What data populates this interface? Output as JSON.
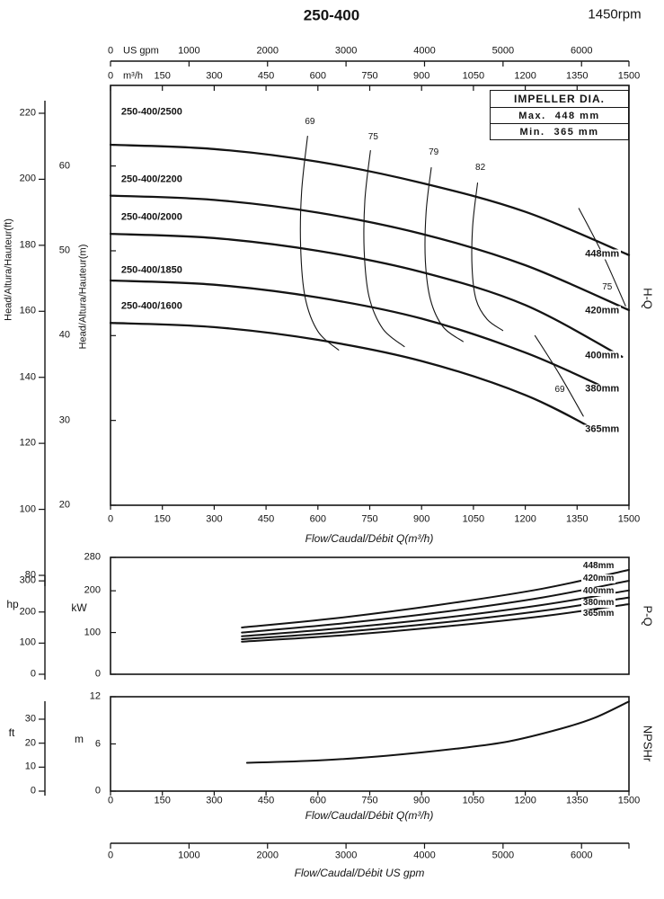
{
  "header": {
    "title": "250-400",
    "rpm": "1450rpm"
  },
  "impeller_box": {
    "title": "IMPELLER DIA.",
    "rows": [
      {
        "label": "Max.",
        "value": "448 mm"
      },
      {
        "label": "Min.",
        "value": "365 mm"
      }
    ]
  },
  "axis_labels": {
    "us_gpm": "US gpm",
    "m3h": "m³/h",
    "head_ft": "Head/Altura/Hauteur(ft)",
    "head_m": "Head/Altura/Hauteur(m)",
    "flow_m3h": "Flow/Caudal/Débit Q(m³/h)",
    "flow_gpm": "Flow/Caudal/Débit  US gpm",
    "hp": "hp",
    "kw": "kW",
    "ft": "ft",
    "m": "m",
    "hq": "H-Q",
    "pq": "P-Q",
    "npshr": "NPSHr"
  },
  "chart_data": [
    {
      "type": "line",
      "name": "H-Q",
      "xlabel": "Flow/Caudal/Débit Q(m³/h)",
      "x2label": "US gpm",
      "xlim_m3h": [
        0,
        1500
      ],
      "x_ticks_m3h": [
        0,
        150,
        300,
        450,
        600,
        750,
        900,
        1050,
        1200,
        1350,
        1500
      ],
      "x_ticks_usgpm": [
        0,
        1000,
        2000,
        3000,
        4000,
        5000,
        6000
      ],
      "ylabel_left_outer": "Head/Altura/Hauteur(ft)",
      "ylabel_left_inner": "Head/Altura/Hauteur(m)",
      "ylim_m": [
        20,
        69.5
      ],
      "y_ticks_m": [
        20,
        30,
        40,
        50,
        60
      ],
      "y_ticks_ft": [
        80,
        100,
        120,
        140,
        160,
        180,
        200,
        220
      ],
      "series": [
        {
          "name": "250-400/2500",
          "impeller": "448mm",
          "label_pos": [
            31,
            66.3
          ],
          "dia_pos": [
            1368,
            49.6
          ],
          "points": [
            [
              0,
              62.5
            ],
            [
              300,
              62
            ],
            [
              600,
              60.5
            ],
            [
              900,
              58
            ],
            [
              1200,
              54.6
            ],
            [
              1500,
              49.5
            ]
          ]
        },
        {
          "name": "250-400/2200",
          "impeller": "420mm",
          "label_pos": [
            31,
            58.4
          ],
          "dia_pos": [
            1368,
            42.9
          ],
          "points": [
            [
              0,
              56.5
            ],
            [
              300,
              56
            ],
            [
              600,
              54.5
            ],
            [
              900,
              52
            ],
            [
              1200,
              48.3
            ],
            [
              1500,
              43
            ]
          ]
        },
        {
          "name": "250-400/2000",
          "impeller": "400mm",
          "label_pos": [
            31,
            53.9
          ],
          "dia_pos": [
            1368,
            37.6
          ],
          "points": [
            [
              0,
              52
            ],
            [
              300,
              51.5
            ],
            [
              600,
              50
            ],
            [
              900,
              47.5
            ],
            [
              1200,
              43.6
            ],
            [
              1480,
              37.5
            ]
          ]
        },
        {
          "name": "250-400/1850",
          "impeller": "380mm",
          "label_pos": [
            31,
            47.7
          ],
          "dia_pos": [
            1368,
            33.7
          ],
          "points": [
            [
              0,
              46.5
            ],
            [
              300,
              46
            ],
            [
              600,
              44.5
            ],
            [
              900,
              42
            ],
            [
              1200,
              38
            ],
            [
              1450,
              33.5
            ]
          ]
        },
        {
          "name": "250-400/1600",
          "impeller": "365mm",
          "label_pos": [
            31,
            43.4
          ],
          "dia_pos": [
            1368,
            28.9
          ],
          "points": [
            [
              0,
              41.5
            ],
            [
              300,
              41
            ],
            [
              600,
              39.5
            ],
            [
              900,
              37
            ],
            [
              1200,
              33
            ],
            [
              1420,
              28.5
            ]
          ]
        }
      ],
      "efficiency_curves": [
        {
          "label": "69",
          "label_pos": [
            577,
            65.2
          ],
          "points": [
            [
              570,
              63.5
            ],
            [
              553,
              57
            ],
            [
              550,
              50.5
            ],
            [
              563,
              44.5
            ],
            [
              600,
              40.5
            ],
            [
              660,
              38.3
            ]
          ]
        },
        {
          "label": "75",
          "label_pos": [
            760,
            63.4
          ],
          "points": [
            [
              752,
              61.8
            ],
            [
              736,
              56
            ],
            [
              734,
              50
            ],
            [
              748,
              44.6
            ],
            [
              788,
              40.8
            ],
            [
              850,
              38.7
            ]
          ]
        },
        {
          "label": "79",
          "label_pos": [
            935,
            61.5
          ],
          "points": [
            [
              928,
              59.8
            ],
            [
              913,
              54.5
            ],
            [
              911,
              48.8
            ],
            [
              926,
              44.2
            ],
            [
              963,
              41
            ],
            [
              1020,
              39.3
            ]
          ]
        },
        {
          "label": "82",
          "label_pos": [
            1070,
            59.8
          ],
          "points": [
            [
              1062,
              58
            ],
            [
              1048,
              53
            ],
            [
              1046,
              48
            ],
            [
              1058,
              44.2
            ],
            [
              1090,
              41.9
            ],
            [
              1135,
              40.6
            ]
          ]
        },
        {
          "label": "75",
          "label_pos": [
            1437,
            45.6
          ],
          "points": [
            [
              1355,
              55
            ],
            [
              1425,
              49.5
            ],
            [
              1490,
              43.5
            ]
          ]
        },
        {
          "label": "69",
          "label_pos": [
            1300,
            33.6
          ],
          "points": [
            [
              1228,
              40
            ],
            [
              1298,
              35.5
            ],
            [
              1368,
              30.5
            ]
          ]
        }
      ]
    },
    {
      "type": "line",
      "name": "P-Q",
      "ylabel_left_outer": "hp",
      "ylabel_left_inner": "kW",
      "ylim_kw": [
        0,
        280
      ],
      "y_ticks_kw": [
        0,
        100,
        200,
        280
      ],
      "y_ticks_hp": [
        0,
        100,
        200,
        300
      ],
      "series": [
        {
          "name": "448mm",
          "dia_pos": [
            1362,
            258
          ],
          "points": [
            [
              380,
              112
            ],
            [
              650,
              134
            ],
            [
              950,
              166
            ],
            [
              1250,
              205
            ],
            [
              1500,
              250
            ]
          ]
        },
        {
          "name": "420mm",
          "dia_pos": [
            1362,
            228
          ],
          "points": [
            [
              380,
              100
            ],
            [
              650,
              120
            ],
            [
              950,
              148
            ],
            [
              1250,
              184
            ],
            [
              1500,
              224
            ]
          ]
        },
        {
          "name": "400mm",
          "dia_pos": [
            1362,
            199
          ],
          "points": [
            [
              380,
              91
            ],
            [
              650,
              109
            ],
            [
              950,
              134
            ],
            [
              1250,
              166
            ],
            [
              1500,
              201
            ]
          ]
        },
        {
          "name": "380mm",
          "dia_pos": [
            1362,
            171
          ],
          "points": [
            [
              380,
              84
            ],
            [
              650,
              100
            ],
            [
              950,
              123
            ],
            [
              1250,
              152
            ],
            [
              1500,
              184
            ]
          ]
        },
        {
          "name": "365mm",
          "dia_pos": [
            1362,
            144
          ],
          "points": [
            [
              380,
              78
            ],
            [
              650,
              92
            ],
            [
              950,
              113
            ],
            [
              1250,
              139
            ],
            [
              1500,
              168
            ]
          ]
        }
      ]
    },
    {
      "type": "line",
      "name": "NPSHr",
      "xlabel": "Flow/Caudal/Débit Q(m³/h)",
      "x_ticks_m3h": [
        0,
        150,
        300,
        450,
        600,
        750,
        900,
        1050,
        1200,
        1350,
        1500
      ],
      "ylabel_left_outer": "ft",
      "ylabel_left_inner": "m",
      "ylim_m": [
        0,
        12
      ],
      "y_ticks_m": [
        0,
        6,
        12
      ],
      "y_ticks_ft": [
        0,
        10,
        20,
        30
      ],
      "series": [
        {
          "name": "NPSHr",
          "points": [
            [
              395,
              3.6
            ],
            [
              600,
              3.9
            ],
            [
              800,
              4.5
            ],
            [
              1000,
              5.4
            ],
            [
              1150,
              6.3
            ],
            [
              1300,
              7.9
            ],
            [
              1400,
              9.3
            ],
            [
              1500,
              11.4
            ]
          ]
        }
      ]
    },
    {
      "type": "axis",
      "name": "flow-usgpm-axis",
      "xlabel": "Flow/Caudal/Débit  US gpm",
      "xlim_usgpm": [
        0,
        6604
      ],
      "x_ticks_usgpm": [
        0,
        1000,
        2000,
        3000,
        4000,
        5000,
        6000
      ]
    }
  ]
}
